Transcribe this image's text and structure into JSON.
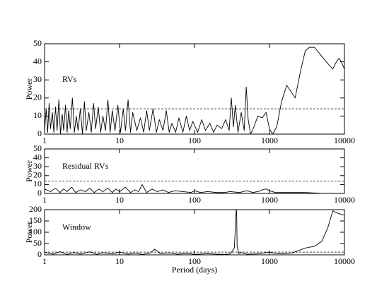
{
  "chart_data": [
    {
      "type": "line",
      "annotation": "RVs",
      "ylabel": "Power",
      "xscale": "log",
      "color": "#000000",
      "x": [
        1,
        1.05,
        1.1,
        1.15,
        1.2,
        1.27,
        1.33,
        1.4,
        1.47,
        1.55,
        1.63,
        1.72,
        1.8,
        1.9,
        2,
        2.1,
        2.2,
        2.35,
        2.5,
        2.65,
        2.8,
        3,
        3.2,
        3.4,
        3.6,
        3.9,
        4.2,
        4.5,
        4.8,
        5.2,
        5.6,
        6,
        6.5,
        7,
        7.5,
        8,
        8.7,
        9.5,
        10.3,
        11.2,
        12,
        13,
        14,
        15,
        17,
        19,
        21,
        23,
        25,
        28,
        31,
        34,
        38,
        42,
        46,
        50,
        56,
        62,
        70,
        78,
        86,
        95,
        110,
        125,
        140,
        160,
        180,
        200,
        230,
        260,
        290,
        310,
        330,
        350,
        380,
        420,
        460,
        490,
        520,
        560,
        620,
        700,
        800,
        900,
        1000,
        1100,
        1250,
        1450,
        1700,
        1900,
        2200,
        2600,
        3000,
        3400,
        4000,
        5000,
        6000,
        7000,
        7800,
        8500,
        9300,
        10000
      ],
      "values": [
        2,
        14,
        1,
        17,
        3,
        12,
        1,
        15,
        2,
        19,
        0,
        11,
        2,
        16,
        1,
        13,
        3,
        20,
        1,
        10,
        2,
        14,
        0,
        18,
        2,
        12,
        1,
        17,
        3,
        15,
        1,
        10,
        2,
        19,
        1,
        13,
        2,
        16,
        1,
        14,
        2,
        19,
        1,
        12,
        2,
        9,
        1,
        13,
        2,
        14,
        1,
        8,
        2,
        13,
        1,
        6,
        1,
        9,
        1,
        10,
        2,
        7,
        1,
        8,
        2,
        6,
        1,
        5,
        3,
        8,
        2,
        20,
        4,
        16,
        1,
        12,
        2,
        26,
        8,
        0,
        4,
        10,
        9,
        12,
        3,
        0,
        4,
        18,
        27,
        24,
        20,
        35,
        46,
        48,
        48,
        43,
        39,
        36,
        40,
        42,
        39,
        36
      ],
      "reference_line": 14,
      "xlim": [
        1,
        10000
      ],
      "xticks": [
        1,
        10,
        100,
        1000,
        10000
      ],
      "ylim": [
        0,
        50
      ],
      "yticks": [
        0,
        10,
        20,
        30,
        40,
        50
      ]
    },
    {
      "type": "line",
      "annotation": "Residual RVs",
      "ylabel": "Power",
      "xscale": "log",
      "color": "#000000",
      "x": [
        1,
        1.2,
        1.4,
        1.6,
        1.8,
        2,
        2.3,
        2.6,
        3,
        3.5,
        4,
        4.6,
        5.3,
        6,
        7,
        8,
        9,
        10,
        12,
        14,
        16,
        18,
        20,
        23,
        27,
        32,
        38,
        45,
        55,
        70,
        90,
        100,
        120,
        150,
        200,
        250,
        300,
        400,
        500,
        600,
        700,
        800,
        900,
        1000,
        1200,
        1500,
        2000,
        3000,
        5000,
        10000
      ],
      "values": [
        5,
        2,
        6,
        1,
        5,
        2,
        7,
        1,
        4,
        2,
        6,
        1,
        5,
        2,
        6,
        1,
        5,
        2,
        7,
        1,
        4,
        2,
        10,
        1,
        5,
        2,
        4,
        1,
        3,
        2,
        1,
        3,
        1,
        2,
        1,
        1,
        2,
        1,
        3,
        1,
        2,
        4,
        5,
        3,
        1,
        1,
        1,
        1,
        0,
        0
      ],
      "reference_line": 14,
      "xlim": [
        1,
        10000
      ],
      "xticks": [
        1,
        10,
        100,
        1000,
        10000
      ],
      "ylim": [
        0,
        50
      ],
      "yticks": [
        0,
        10,
        20,
        30,
        40,
        50
      ]
    },
    {
      "type": "line",
      "annotation": "Window",
      "ylabel": "Power",
      "xlabel": "Period (days)",
      "xscale": "log",
      "color": "#000000",
      "x": [
        1,
        1.3,
        1.6,
        2,
        2.5,
        3,
        4,
        5,
        6,
        8,
        10,
        13,
        16,
        20,
        25,
        29.5,
        35,
        45,
        60,
        80,
        100,
        150,
        200,
        250,
        300,
        340,
        360,
        365,
        370,
        390,
        420,
        500,
        700,
        1000,
        1200,
        1500,
        2000,
        2500,
        3000,
        4000,
        5000,
        6000,
        7000,
        8000,
        9000,
        10000
      ],
      "values": [
        12,
        3,
        14,
        2,
        10,
        3,
        13,
        2,
        9,
        4,
        12,
        3,
        8,
        2,
        6,
        25,
        5,
        8,
        3,
        6,
        2,
        5,
        3,
        2,
        4,
        30,
        200,
        190,
        40,
        5,
        10,
        3,
        4,
        12,
        6,
        4,
        8,
        20,
        30,
        38,
        60,
        120,
        195,
        185,
        180,
        175
      ],
      "reference_line": 12,
      "xlim": [
        1,
        10000
      ],
      "xticks": [
        1,
        10,
        100,
        1000,
        10000
      ],
      "ylim": [
        0,
        200
      ],
      "yticks": [
        0,
        50,
        100,
        150,
        200
      ]
    }
  ]
}
